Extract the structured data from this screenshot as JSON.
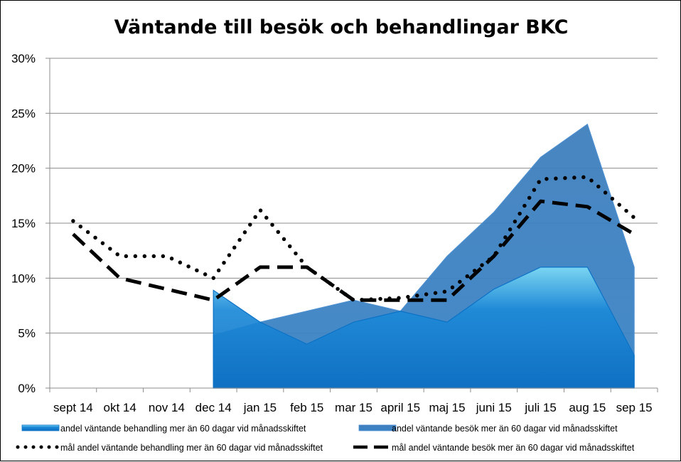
{
  "chart_data": {
    "type": "area",
    "title": "Väntande till besök och behandlingar BKC",
    "xlabel": "",
    "ylabel": "",
    "categories": [
      "sept 14",
      "okt 14",
      "nov 14",
      "dec 14",
      "jan 15",
      "feb 15",
      "mar 15",
      "april 15",
      "maj 15",
      "juni 15",
      "juli 15",
      "aug 15",
      "sep 15"
    ],
    "y_ticks": [
      "0%",
      "5%",
      "10%",
      "15%",
      "20%",
      "25%",
      "30%"
    ],
    "ylim": [
      0,
      0.3
    ],
    "grid": true,
    "legend": "bottom",
    "series": [
      {
        "name": "andel väntande besök mer än 60 dagar vid månadsskiftet",
        "kind": "area",
        "color": "#3a86c8",
        "values": [
          null,
          null,
          null,
          0.048,
          0.06,
          0.07,
          0.08,
          0.07,
          0.12,
          0.16,
          0.21,
          0.24,
          0.11
        ]
      },
      {
        "name": "andel väntande behandling mer än 60 dagar vid månadsskiftet",
        "kind": "area",
        "color": "#1f7fd0",
        "values": [
          null,
          null,
          null,
          0.089,
          0.06,
          0.04,
          0.06,
          0.07,
          0.06,
          0.09,
          0.11,
          0.11,
          0.03
        ]
      },
      {
        "name": "mål andel väntande behandling mer än 60 dagar vid månadsskiftet",
        "kind": "dotted",
        "color": "#000000",
        "values": [
          0.152,
          0.12,
          0.12,
          0.1,
          0.162,
          0.11,
          0.08,
          0.082,
          0.088,
          0.12,
          0.19,
          0.192,
          0.155
        ]
      },
      {
        "name": "mål andel  väntande besök mer än 60 dagar vid månadsskiftet",
        "kind": "dashed",
        "color": "#000000",
        "values": [
          0.14,
          0.1,
          0.09,
          0.08,
          0.11,
          0.11,
          0.08,
          0.08,
          0.08,
          0.12,
          0.17,
          0.165,
          0.14
        ]
      }
    ]
  }
}
